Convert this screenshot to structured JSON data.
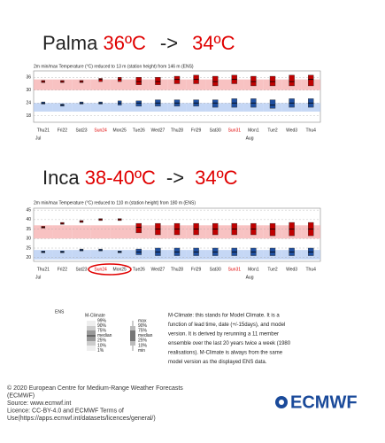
{
  "headings": [
    {
      "place": "Palma",
      "from": "36ºC",
      "arrow": "->",
      "to": "34ºC"
    },
    {
      "place": "Inca",
      "from": "38-40ºC",
      "arrow": "->",
      "to": "34ºC"
    }
  ],
  "chart_data": [
    {
      "type": "box",
      "title": "2m min/max Temperature (°C) reduced to 13 m (station height) from 146 m (ENS)",
      "categories": [
        "Thu21",
        "Fri22",
        "Sat23",
        "Sun24",
        "Mon25",
        "Tue26",
        "Wed27",
        "Thu28",
        "Fri29",
        "Sat30",
        "Sun31",
        "Mon1",
        "Tue2",
        "Wed3",
        "Thu4"
      ],
      "category_colors": [
        "#222",
        "#222",
        "#222",
        "#e00000",
        "#222",
        "#222",
        "#222",
        "#222",
        "#222",
        "#222",
        "#e00000",
        "#222",
        "#222",
        "#222",
        "#222"
      ],
      "month_labels": [
        "Jul",
        null,
        null,
        null,
        null,
        null,
        null,
        null,
        null,
        null,
        null,
        "Aug",
        null,
        null,
        null
      ],
      "ylim": [
        15,
        39
      ],
      "yticks": [
        18,
        24,
        30,
        36
      ],
      "grid": true,
      "bands": [
        {
          "color": "#f6b3b3",
          "low": [
            30,
            30,
            30,
            30,
            30,
            30,
            30,
            30,
            30,
            30,
            30,
            30,
            30,
            30,
            30
          ],
          "high": [
            35,
            35,
            35,
            35,
            35,
            35,
            35,
            35,
            35,
            35,
            35,
            35,
            35,
            35,
            35
          ]
        },
        {
          "color": "#b7cdf2",
          "low": [
            20,
            20,
            20,
            20,
            20,
            20,
            20,
            20,
            20,
            20,
            20,
            20,
            20,
            20,
            20
          ],
          "high": [
            24,
            24,
            24,
            24,
            24,
            24,
            24,
            24,
            24,
            24,
            24,
            24,
            24,
            24,
            24
          ]
        }
      ],
      "series": [
        {
          "color": "#c00000",
          "values": [
            34,
            34,
            34,
            35,
            35,
            34,
            34,
            35,
            35,
            34,
            35,
            34,
            34,
            34,
            35
          ],
          "low": [
            33.5,
            33.5,
            33.5,
            34,
            34,
            32.5,
            32.5,
            33,
            33,
            32,
            33,
            32,
            32,
            32,
            32
          ],
          "high": [
            34.5,
            34.5,
            34.5,
            35.5,
            36,
            36,
            36,
            36.5,
            37,
            36.5,
            37,
            36.5,
            36.5,
            37,
            37
          ]
        },
        {
          "color": "#1f4fa0",
          "values": [
            24,
            23,
            24,
            24,
            24,
            24,
            24,
            24,
            24,
            24,
            24,
            24,
            23,
            24,
            24
          ],
          "low": [
            23.5,
            22.5,
            23.5,
            23.5,
            23,
            22.5,
            22.5,
            22.5,
            22.5,
            22,
            22,
            22,
            21.5,
            22,
            22
          ],
          "high": [
            24.5,
            23.5,
            24.5,
            24.5,
            25,
            25,
            25.5,
            25.5,
            25.5,
            25.5,
            26,
            26,
            25.5,
            26,
            26
          ]
        }
      ]
    },
    {
      "type": "box",
      "title": "2m min/max Temperature (°C) reduced to 110 m (station height) from 180 m (ENS)",
      "categories": [
        "Thu21",
        "Fri22",
        "Sat23",
        "Sun24",
        "Mon25",
        "Tue26",
        "Wed27",
        "Thu28",
        "Fri29",
        "Sat30",
        "Sun31",
        "Mon1",
        "Tue2",
        "Wed3",
        "Thu4"
      ],
      "category_colors": [
        "#222",
        "#222",
        "#222",
        "#e00000",
        "#222",
        "#222",
        "#222",
        "#222",
        "#222",
        "#222",
        "#e00000",
        "#222",
        "#222",
        "#222",
        "#222"
      ],
      "month_labels": [
        "Jul",
        null,
        null,
        null,
        null,
        null,
        null,
        null,
        null,
        null,
        null,
        "Aug",
        null,
        null,
        null
      ],
      "ylim": [
        18,
        46
      ],
      "yticks": [
        20,
        25,
        30,
        35,
        40,
        45
      ],
      "grid": true,
      "bands": [
        {
          "color": "#f6b3b3",
          "low": [
            30,
            30,
            30,
            30,
            30,
            30,
            30,
            30,
            30,
            30,
            30,
            30,
            30,
            30,
            30
          ],
          "high": [
            37,
            37,
            37,
            37,
            37,
            37,
            37,
            37,
            37,
            37,
            37,
            37,
            37,
            37,
            37
          ]
        },
        {
          "color": "#b7cdf2",
          "low": [
            19,
            19,
            19,
            19,
            19,
            19,
            19,
            19,
            19,
            19,
            19,
            19,
            19,
            19,
            19
          ],
          "high": [
            24,
            24,
            24,
            24,
            24,
            24,
            24,
            24,
            24,
            24,
            24,
            24,
            24,
            24,
            24
          ]
        }
      ],
      "series": [
        {
          "color": "#c00000",
          "values": [
            36,
            38,
            39,
            40,
            40,
            36,
            35,
            35,
            35,
            35,
            35,
            35,
            35,
            35,
            35
          ],
          "low": [
            35.5,
            37.5,
            38.5,
            39.5,
            39.5,
            33,
            32,
            32,
            32,
            32,
            32,
            32,
            31.5,
            31.5,
            31.5
          ],
          "high": [
            36.5,
            38.5,
            39.5,
            40.5,
            40.5,
            38,
            38,
            38,
            38,
            38,
            38,
            38,
            38,
            38.5,
            38.5
          ]
        },
        {
          "color": "#1f4fa0",
          "values": [
            23,
            23,
            24,
            24,
            23,
            23,
            23,
            23,
            23,
            23,
            23,
            23,
            23,
            23,
            23
          ],
          "low": [
            22.5,
            22.5,
            23.5,
            23.5,
            22.5,
            21.5,
            21,
            21,
            21,
            21,
            21,
            21,
            21,
            21,
            21
          ],
          "high": [
            23.5,
            23.5,
            24.5,
            24.5,
            23.5,
            24.5,
            25,
            25,
            25,
            25,
            25,
            25,
            25,
            25,
            25
          ]
        }
      ]
    }
  ],
  "legend": {
    "ens_label": "ENS",
    "mclimate_title": "M-Climate",
    "mclimate_levels": [
      "99%",
      "90%",
      "75%",
      "median",
      "25%",
      "10%",
      "1%"
    ],
    "box_levels": [
      "max",
      "90%",
      "75%",
      "median",
      "25%",
      "10%",
      "min"
    ],
    "description": [
      "M-Climate: this stands for Model Climate. It is a",
      "function of lead time, date (+/-15days), and model",
      "version. It is derived by rerunning a 11 member",
      "ensemble over the last 20 years twice a week (1980",
      "realisations). M-Climate is always from the same",
      "model version as the displayed ENS data."
    ]
  },
  "footer": [
    "© 2020 European Centre for Medium-Range Weather Forecasts",
    "(ECMWF)",
    "Source: www.ecmwf.int",
    "Licence: CC-BY-4.0 and ECMWF Terms of",
    "Use(https://apps.ecmwf.int/datasets/licences/general/)"
  ],
  "logo": "ECMWF"
}
